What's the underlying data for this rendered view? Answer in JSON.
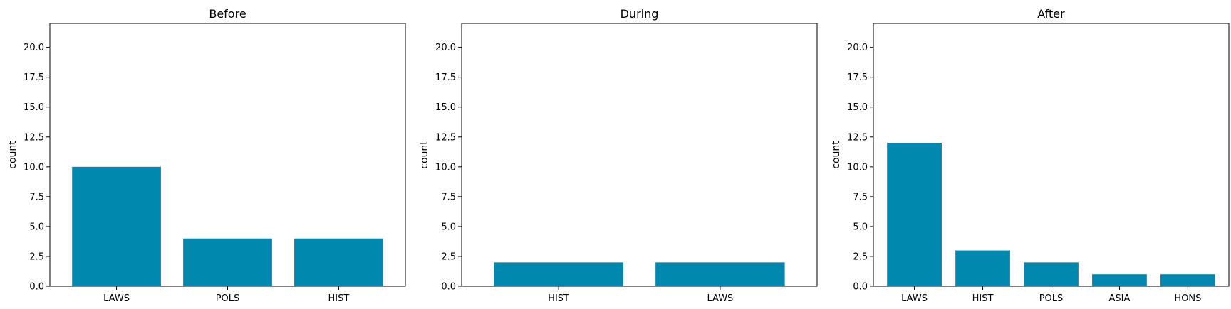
{
  "chart_data": [
    {
      "type": "bar",
      "title": "Before",
      "xlabel": "",
      "ylabel": "count",
      "categories": [
        "LAWS",
        "POLS",
        "HIST"
      ],
      "values": [
        10,
        4,
        4
      ],
      "ylim": [
        0,
        22
      ],
      "yticks": [
        "0.0",
        "2.5",
        "5.0",
        "7.5",
        "10.0",
        "12.5",
        "15.0",
        "17.5",
        "20.0"
      ],
      "bar_color": "#0088AF",
      "grid": false
    },
    {
      "type": "bar",
      "title": "During",
      "xlabel": "",
      "ylabel": "count",
      "categories": [
        "HIST",
        "LAWS"
      ],
      "values": [
        2,
        2
      ],
      "ylim": [
        0,
        22
      ],
      "yticks": [
        "0.0",
        "2.5",
        "5.0",
        "7.5",
        "10.0",
        "12.5",
        "15.0",
        "17.5",
        "20.0"
      ],
      "bar_color": "#0088AF",
      "grid": false
    },
    {
      "type": "bar",
      "title": "After",
      "xlabel": "",
      "ylabel": "count",
      "categories": [
        "LAWS",
        "HIST",
        "POLS",
        "ASIA",
        "HONS"
      ],
      "values": [
        12,
        3,
        2,
        1,
        1
      ],
      "ylim": [
        0,
        22
      ],
      "yticks": [
        "0.0",
        "2.5",
        "5.0",
        "7.5",
        "10.0",
        "12.5",
        "15.0",
        "17.5",
        "20.0"
      ],
      "bar_color": "#0088AF",
      "grid": false
    }
  ]
}
